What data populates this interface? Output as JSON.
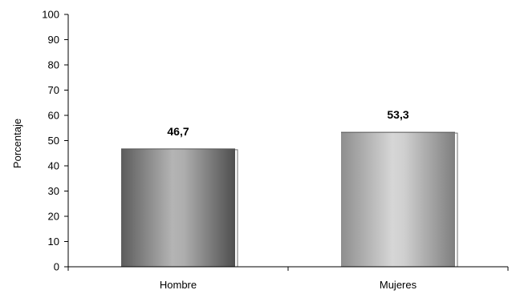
{
  "chart_data": {
    "type": "bar",
    "categories": [
      "Hombre",
      "Mujeres"
    ],
    "values": [
      46.7,
      53.3
    ],
    "value_labels": [
      "46,7",
      "53,3"
    ],
    "ylabel": "Porcentaje",
    "xlabel": "",
    "ylim": [
      0,
      100
    ],
    "yticks": [
      0,
      10,
      20,
      30,
      40,
      50,
      60,
      70,
      80,
      90,
      100
    ],
    "grid": false,
    "legend": "none"
  }
}
